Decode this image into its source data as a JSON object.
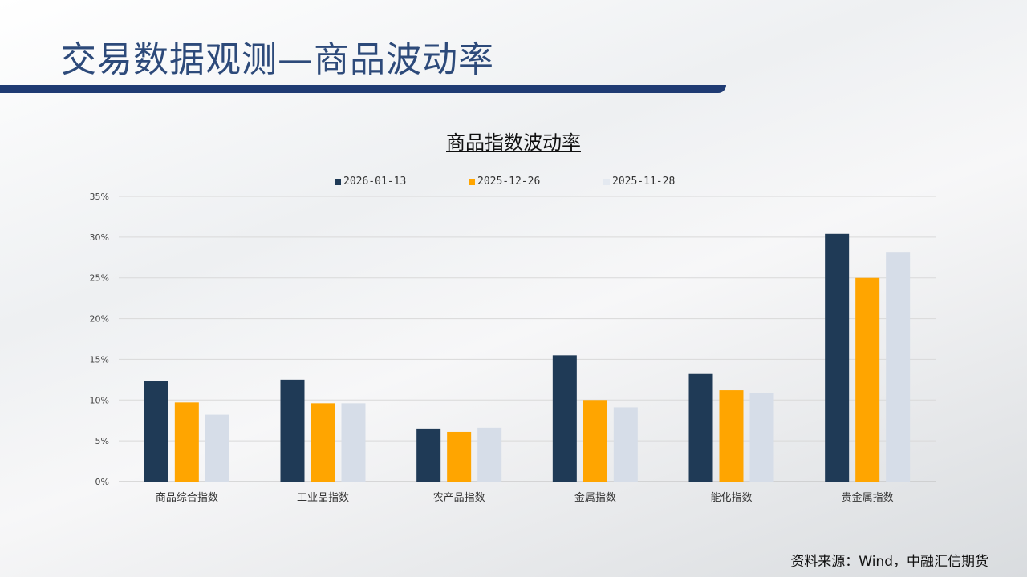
{
  "header": {
    "title": "交易数据观测—商品波动率"
  },
  "source": "资料来源：Wind，中融汇信期货",
  "chart_data": {
    "type": "bar",
    "title": "商品指数波动率",
    "categories": [
      "商品综合指数",
      "工业品指数",
      "农产品指数",
      "金属指数",
      "能化指数",
      "贵金属指数"
    ],
    "series": [
      {
        "name": "2026-01-13",
        "color": "#1f3a56",
        "values": [
          12.3,
          12.5,
          6.5,
          15.5,
          13.2,
          30.4
        ]
      },
      {
        "name": "2025-12-26",
        "color": "#ffa500",
        "values": [
          9.7,
          9.6,
          6.1,
          10.0,
          11.2,
          25.0
        ]
      },
      {
        "name": "2025-11-28",
        "color": "#d6dde8",
        "values": [
          8.2,
          9.6,
          6.6,
          9.1,
          10.9,
          28.1
        ]
      }
    ],
    "yticks": [
      "0%",
      "5%",
      "10%",
      "15%",
      "20%",
      "25%",
      "30%",
      "35%"
    ],
    "ylim": [
      0,
      35
    ],
    "legend": "top"
  }
}
